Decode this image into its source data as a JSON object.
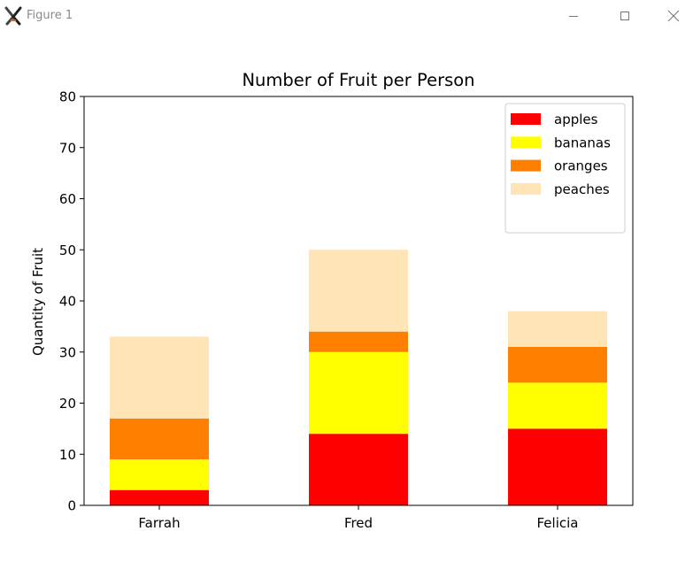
{
  "window": {
    "title": "Figure 1",
    "icon": "matplotlib-x-icon",
    "controls": [
      "minimize-icon",
      "maximize-icon",
      "close-icon"
    ]
  },
  "chart_data": {
    "type": "bar",
    "stacked": true,
    "title": "Number of Fruit per Person",
    "xlabel": "",
    "ylabel": "Quantity of Fruit",
    "categories": [
      "Farrah",
      "Fred",
      "Felicia"
    ],
    "ylim": [
      0,
      80
    ],
    "yticks": [
      0,
      10,
      20,
      30,
      40,
      50,
      60,
      70,
      80
    ],
    "series": [
      {
        "name": "apples",
        "color": "#ff0000",
        "values": [
          3,
          14,
          15
        ]
      },
      {
        "name": "bananas",
        "color": "#ffff00",
        "values": [
          6,
          16,
          9
        ]
      },
      {
        "name": "oranges",
        "color": "#ff7f00",
        "values": [
          8,
          4,
          7
        ]
      },
      {
        "name": "peaches",
        "color": "#ffe4b5",
        "values": [
          16,
          16,
          7
        ]
      }
    ],
    "legend": "top-right",
    "grid": false
  }
}
